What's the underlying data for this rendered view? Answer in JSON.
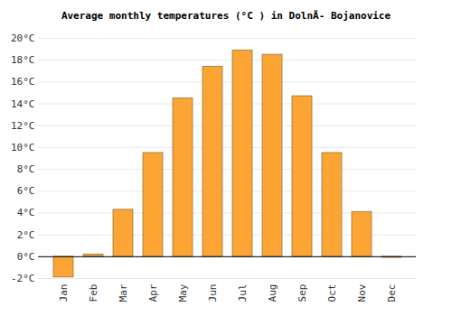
{
  "chart_data": {
    "type": "bar",
    "title": "Average monthly temperatures (°C ) in DolnÃ- Bojanovice",
    "categories": [
      "Jan",
      "Feb",
      "Mar",
      "Apr",
      "May",
      "Jun",
      "Jul",
      "Aug",
      "Sep",
      "Oct",
      "Nov",
      "Dec"
    ],
    "values": [
      -1.9,
      0.2,
      4.3,
      9.5,
      14.5,
      17.4,
      18.9,
      18.5,
      14.7,
      9.5,
      4.1,
      -0.1
    ],
    "color": "#fca534",
    "ylim": [
      -2,
      20
    ],
    "yticks": [
      {
        "value": -2,
        "label": "-2°C"
      },
      {
        "value": 0,
        "label": "0°C"
      },
      {
        "value": 2,
        "label": "2°C"
      },
      {
        "value": 4,
        "label": "4°C"
      },
      {
        "value": 6,
        "label": "6°C"
      },
      {
        "value": 8,
        "label": "8°C"
      },
      {
        "value": 10,
        "label": "10°C"
      },
      {
        "value": 12,
        "label": "12°C"
      },
      {
        "value": 14,
        "label": "14°C"
      },
      {
        "value": 16,
        "label": "16°C"
      },
      {
        "value": 18,
        "label": "18°C"
      },
      {
        "value": 20,
        "label": "20°C"
      }
    ],
    "grid": true
  }
}
